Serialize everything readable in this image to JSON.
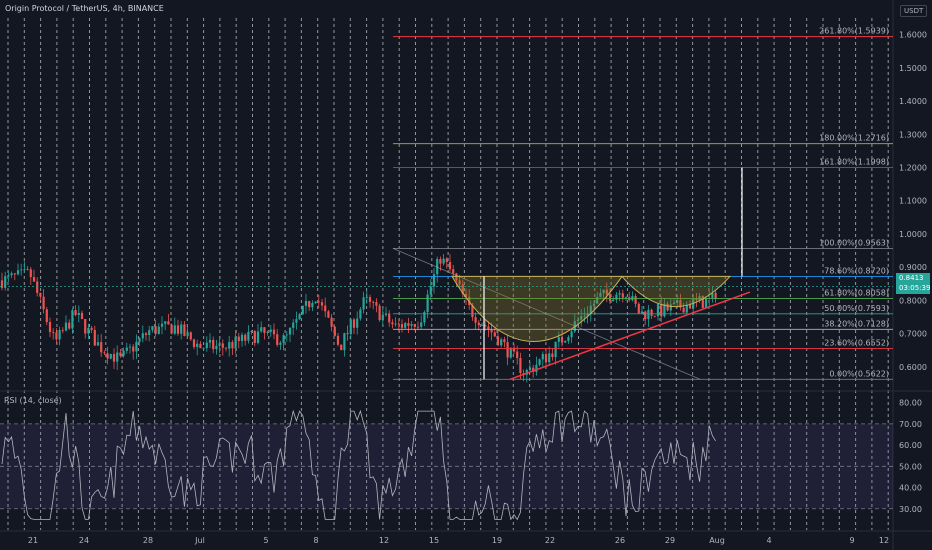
{
  "header": {
    "title": "Origin Protocol / TetherUS, 4h, BINANCE",
    "currency": "USDT"
  },
  "rsi": {
    "label": "RSI (14, close)",
    "levels": [
      "80.00",
      "70.00",
      "60.00",
      "50.00",
      "40.00",
      "30.00"
    ]
  },
  "current_price": {
    "value": "0.8413",
    "countdown": "03:05:39"
  },
  "chart_data": {
    "type": "candlestick",
    "title": "Origin Protocol / TetherUS, 4h, BINANCE",
    "y_axis_labels": [
      "1.6000",
      "1.5000",
      "1.4000",
      "1.3000",
      "1.2000",
      "1.1000",
      "1.0000",
      "0.9000",
      "0.8000",
      "0.7000",
      "0.6000"
    ],
    "ylim": [
      0.53,
      1.65
    ],
    "x_axis_labels": [
      "21",
      "24",
      "28",
      "Jul",
      "5",
      "8",
      "12",
      "15",
      "19",
      "22",
      "26",
      "29",
      "Aug",
      "4",
      "9",
      "12"
    ],
    "fib_levels": [
      {
        "label": "261.80%(1.5939)",
        "value": 1.5939,
        "color": "#f23645"
      },
      {
        "label": "180.00%(1.2716)",
        "value": 1.2716,
        "color": "#8bc34a"
      },
      {
        "label": "161.80%(1.1998)",
        "value": 1.1998,
        "color": "#2962ff"
      },
      {
        "label": "100.00%(0.9563)",
        "value": 0.9563,
        "color": "#787b86"
      },
      {
        "label": "78.60%(0.8720)",
        "value": 0.872,
        "color": "#2196f3"
      },
      {
        "label": "61.80%(0.8058)",
        "value": 0.8058,
        "color": "#4caf50"
      },
      {
        "label": "50.00%(0.7593)",
        "value": 0.7593,
        "color": "#26a69a"
      },
      {
        "label": "38.20%(0.7128)",
        "value": 0.7128,
        "color": "#b2b5be"
      },
      {
        "label": "23.60%(0.6552)",
        "value": 0.6552,
        "color": "#f23645"
      },
      {
        "label": "0.00%(0.5622)",
        "value": 0.5622,
        "color": "#787b86"
      }
    ],
    "rsi_ylim": [
      20,
      85
    ]
  },
  "colors": {
    "up": "#26a69a",
    "down": "#ef5350",
    "background": "#131722",
    "grid": "#2a2e39"
  }
}
